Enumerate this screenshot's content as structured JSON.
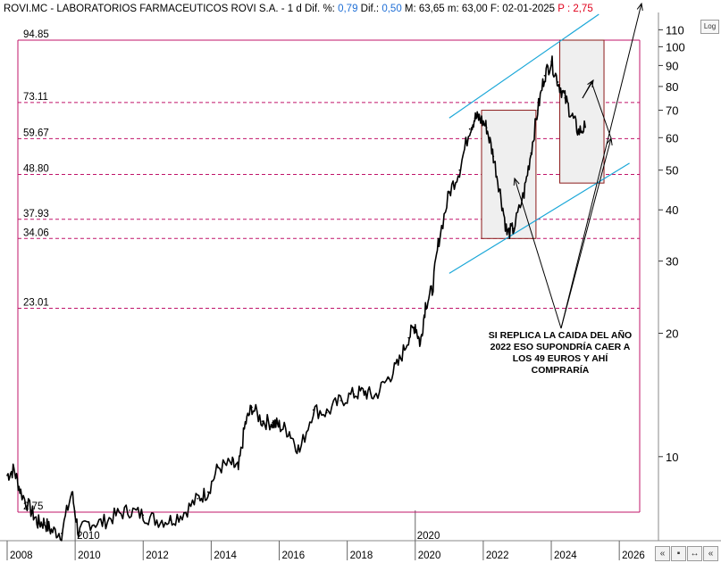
{
  "header": {
    "symbol": "ROVI.MC - LABORATORIOS FARMACEUTICOS ROVI S.A.",
    "timeframe": "-  1 d",
    "dif_pct_label": "Dif. %:",
    "dif_pct_value": "0,79",
    "dif_label": "Dif.:",
    "dif_value": "0,50",
    "max_label": "M: 63,65",
    "min_label": "m: 63,00",
    "date_label": "F: 02-01-2025",
    "p_label": "P : 2,75"
  },
  "toolbar": {
    "log_label": "Log"
  },
  "annotation": {
    "line1": "SI REPLICA LA CAIDA DEL AÑO",
    "line2": "2022 ESO SUPONDRÍA CAER A",
    "line3": "LOS 49 EUROS Y AHÍ",
    "line4": "COMPRARÍA"
  },
  "colors": {
    "price": "#000000",
    "levels": "#c0146a",
    "channel": "#1aa7d8",
    "box_fill": "#efefef",
    "box_edge": "#8b1a1a",
    "axis_text": "#000000"
  },
  "chart_data": {
    "type": "line",
    "title": "ROVI.MC - LABORATORIOS FARMACEUTICOS ROVI S.A.",
    "y_scale": "log",
    "ylim": [
      6.3,
      120
    ],
    "y_ticks": [
      10,
      20,
      30,
      40,
      50,
      60,
      70,
      80,
      90,
      100,
      110
    ],
    "x_range": [
      2008.0,
      2026.6
    ],
    "x_tick_labels": [
      "2008",
      "2010",
      "2012",
      "2014",
      "2016",
      "2018",
      "2020",
      "2022",
      "2024",
      "2026"
    ],
    "x_tick_years": [
      2008,
      2010,
      2012,
      2014,
      2016,
      2018,
      2020,
      2022,
      2024,
      2026
    ],
    "x_secondary_labels": [
      "2010",
      "2020"
    ],
    "x_secondary_years": [
      2010,
      2020
    ],
    "level_lines": [
      {
        "label": "94.85",
        "value": 94.85,
        "style": "solid"
      },
      {
        "label": "73.11",
        "value": 73.11,
        "style": "dashed"
      },
      {
        "label": "59.67",
        "value": 59.67,
        "style": "dashed"
      },
      {
        "label": "48.80",
        "value": 48.8,
        "style": "dashed"
      },
      {
        "label": "37.93",
        "value": 37.93,
        "style": "dashed"
      },
      {
        "label": "34.06",
        "value": 34.06,
        "style": "dashed"
      },
      {
        "label": "23.01",
        "value": 23.01,
        "style": "dashed"
      },
      {
        "label": "2.75",
        "value": 2.75,
        "style": "solid"
      }
    ],
    "series": [
      {
        "x": [
          2008.0,
          2008.2,
          2008.4,
          2008.7,
          2008.9,
          2009.1,
          2009.3,
          2009.6,
          2009.9,
          2010.1,
          2010.4,
          2010.8,
          2011.2,
          2011.6,
          2012.0,
          2012.4,
          2012.8,
          2013.2,
          2013.6,
          2013.9,
          2014.2,
          2014.6,
          2014.8,
          2015.0,
          2015.2,
          2015.5,
          2015.8,
          2016.0,
          2016.3,
          2016.6,
          2017.0,
          2017.4,
          2017.8,
          2018.2,
          2018.5,
          2018.8,
          2019.2,
          2019.5,
          2019.8,
          2020.0,
          2020.15,
          2020.3,
          2020.5,
          2020.7,
          2021.0,
          2021.3,
          2021.6,
          2021.75,
          2021.9,
          2022.1,
          2022.3,
          2022.5,
          2022.7,
          2022.9,
          2023.2,
          2023.4,
          2023.6,
          2023.8,
          2024.0,
          2024.2,
          2024.4,
          2024.6,
          2024.8,
          2025.0
        ],
        "y": [
          9.0,
          9.3,
          8.2,
          7.4,
          6.9,
          6.9,
          6.6,
          6.5,
          8.2,
          6.5,
          6.9,
          6.9,
          7.2,
          7.4,
          7.2,
          7.0,
          7.0,
          7.3,
          7.9,
          8.2,
          9.4,
          9.6,
          9.3,
          12.0,
          13.2,
          12.2,
          12.1,
          11.9,
          11.5,
          10.3,
          13.0,
          12.8,
          13.7,
          14.2,
          14.4,
          14.0,
          15.5,
          16.8,
          19.5,
          21.0,
          18.8,
          23.5,
          25.5,
          34.0,
          44.0,
          50.0,
          63.0,
          67.0,
          67.0,
          63.5,
          54.0,
          44.0,
          35.0,
          36.0,
          44.0,
          55.0,
          70.0,
          85.0,
          92.0,
          82.0,
          75.0,
          68.0,
          62.0,
          63.6
        ]
      }
    ],
    "channel": {
      "upper": {
        "x": [
          2021.0,
          2025.4
        ],
        "y": [
          67.0,
          120.0
        ]
      },
      "lower": {
        "x": [
          2021.0,
          2026.3
        ],
        "y": [
          28.0,
          52.0
        ]
      }
    },
    "boxes": [
      {
        "x": [
          2021.95,
          2023.55
        ],
        "y": [
          34.06,
          70.0
        ]
      },
      {
        "x": [
          2024.25,
          2025.55
        ],
        "y": [
          46.5,
          94.85
        ]
      }
    ]
  }
}
